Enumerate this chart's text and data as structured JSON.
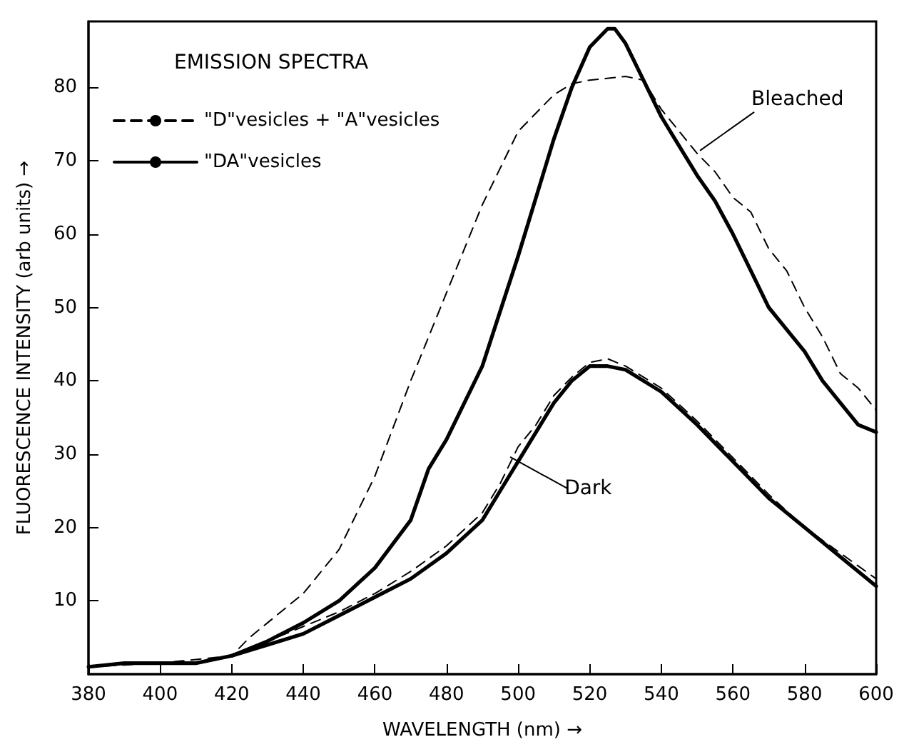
{
  "chart_data": {
    "type": "line",
    "xlabel": "WAVELENGTH (nm) →",
    "ylabel": "FLUORESCENCE INTENSITY (arb units) →",
    "legend_title": "EMISSION SPECTRA",
    "legend": "top left",
    "grid": false,
    "marker": "none",
    "xlim": [
      380,
      600
    ],
    "xticks": [
      380,
      400,
      420,
      440,
      460,
      480,
      500,
      520,
      540,
      560,
      580,
      600
    ],
    "ylim": [
      0,
      89
    ],
    "yticks": [
      10,
      20,
      30,
      40,
      50,
      60,
      70,
      80
    ],
    "series": [
      {
        "name": "\"D\"vesicles + \"A\"vesicles",
        "color": "#000000",
        "line_style": "dashed",
        "x": [
          380,
          400,
          420,
          425,
          430,
          440,
          450,
          460,
          470,
          480,
          490,
          500,
          510,
          515,
          520,
          530,
          535,
          540,
          545,
          550,
          555,
          560,
          565,
          570,
          575,
          580,
          585,
          590,
          595,
          600
        ],
        "values": [
          1,
          1.5,
          2.5,
          5,
          7,
          11,
          17,
          27,
          40,
          52,
          64,
          74,
          79,
          80.5,
          81,
          81.5,
          81,
          77,
          74,
          71,
          68.5,
          65,
          63,
          58,
          55,
          50,
          46,
          41,
          39,
          36
        ]
      },
      {
        "name": "\"DA\"vesicles",
        "color": "#000000",
        "line_style": "solid",
        "x": [
          380,
          390,
          400,
          410,
          420,
          430,
          440,
          450,
          460,
          470,
          475,
          480,
          490,
          500,
          505,
          510,
          515,
          520,
          525,
          527,
          530,
          535,
          540,
          545,
          550,
          555,
          560,
          565,
          570,
          575,
          580,
          585,
          590,
          595,
          600
        ],
        "values": [
          1,
          1.5,
          1.5,
          1.5,
          2.5,
          4.5,
          7,
          10,
          14.5,
          21,
          28,
          32,
          42,
          57,
          65,
          73,
          80,
          85.5,
          88,
          88,
          86,
          81,
          76,
          72,
          68,
          64.5,
          60,
          55,
          50,
          47,
          44,
          40,
          37,
          34,
          33
        ]
      },
      {
        "color": "#000000",
        "line_style": "dashed",
        "x": [
          420,
          430,
          440,
          450,
          460,
          470,
          480,
          490,
          495,
          500,
          505,
          510,
          515,
          520,
          525,
          530,
          540,
          550,
          560,
          570,
          580,
          590,
          600
        ],
        "values": [
          2.5,
          4.5,
          6.5,
          8.5,
          11,
          14,
          17.5,
          22,
          26,
          31,
          34,
          38,
          40.5,
          42.5,
          43,
          42,
          39,
          34.5,
          29.5,
          24.5,
          20,
          16.5,
          13
        ]
      },
      {
        "color": "#000000",
        "line_style": "solid",
        "x": [
          420,
          430,
          440,
          450,
          460,
          470,
          480,
          490,
          495,
          500,
          505,
          510,
          515,
          520,
          525,
          530,
          540,
          550,
          560,
          570,
          580,
          590,
          595,
          600
        ],
        "values": [
          2.5,
          4,
          5.5,
          8,
          10.5,
          13,
          16.5,
          21,
          25,
          29,
          33,
          37,
          40,
          42,
          42,
          41.5,
          38.5,
          34,
          29,
          24,
          20,
          16,
          14,
          12
        ]
      }
    ],
    "annotations": [
      {
        "text": "Bleached",
        "x": 550,
        "y": 71
      },
      {
        "text": "Dark",
        "x": 497,
        "y": 30
      }
    ]
  }
}
